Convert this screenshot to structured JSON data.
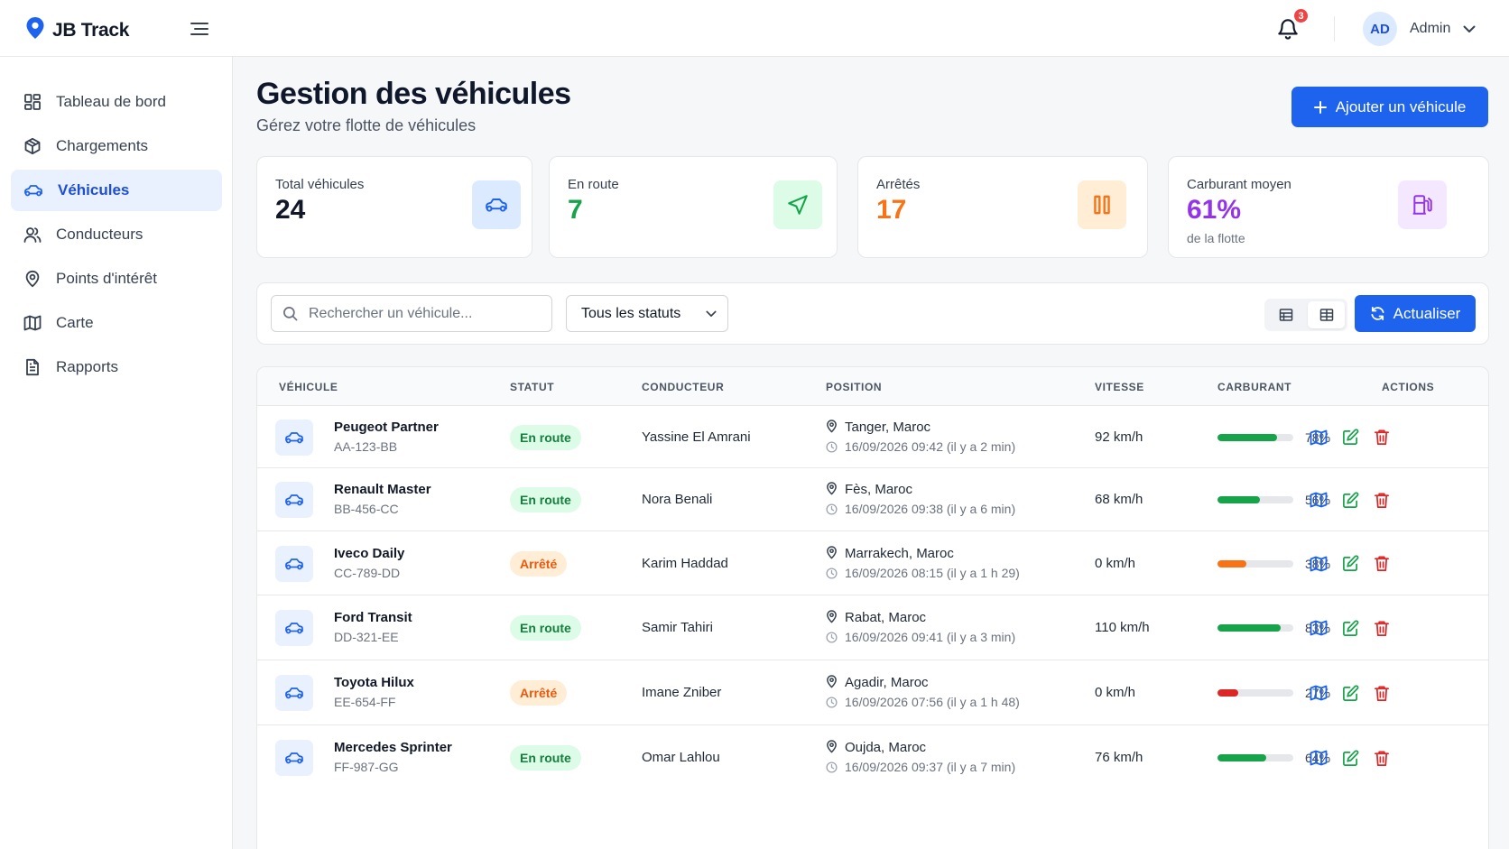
{
  "app": {
    "name": "JB Track"
  },
  "header": {
    "notifications_count": "3",
    "user_initials": "AD",
    "user_name": "Admin"
  },
  "sidebar": {
    "items": [
      {
        "label": "Tableau de bord",
        "icon": "grid-icon"
      },
      {
        "label": "Chargements",
        "icon": "box-icon"
      },
      {
        "label": "Véhicules",
        "icon": "car-icon",
        "active": true
      },
      {
        "label": "Conducteurs",
        "icon": "users-icon"
      },
      {
        "label": "Points d'intérêt",
        "icon": "map-pin-icon"
      },
      {
        "label": "Carte",
        "icon": "map-icon"
      },
      {
        "label": "Rapports",
        "icon": "file-text-icon"
      }
    ]
  },
  "page": {
    "title": "Gestion des véhicules",
    "subtitle": "Gérez votre flotte de véhicules",
    "add_button": "Ajouter un véhicule"
  },
  "stats": [
    {
      "label": "Total véhicules",
      "value": "24",
      "color": "#111827",
      "icon": "car-icon"
    },
    {
      "label": "En route",
      "value": "7",
      "color": "#16a34a",
      "icon": "navigation-icon"
    },
    {
      "label": "Arrêtés",
      "value": "17",
      "color": "#f97316",
      "icon": "pause-icon"
    },
    {
      "label": "Carburant moyen",
      "value": "61%",
      "footnote": "de la flotte",
      "color": "#9333ea",
      "icon": "fuel-icon"
    }
  ],
  "filters": {
    "search_placeholder": "Rechercher un véhicule...",
    "status_selected": "Tous les statuts",
    "refresh_label": "Actualiser"
  },
  "table": {
    "columns": [
      "VÉHICULE",
      "STATUT",
      "CONDUCTEUR",
      "POSITION",
      "VITESSE",
      "CARBURANT",
      "ACTIONS"
    ],
    "rows": [
      {
        "name": "Peugeot Partner",
        "plate": "AA-123-BB",
        "status": "En route",
        "status_type": "run",
        "driver": "Yassine El Amrani",
        "city": "Tanger, Maroc",
        "time": "16/09/2026 09:42 (il y a 2 min)",
        "speed": "92 km/h",
        "fuel": 78,
        "fuel_label": "78%",
        "fuel_color": "#16a34a"
      },
      {
        "name": "Renault Master",
        "plate": "BB-456-CC",
        "status": "En route",
        "status_type": "run",
        "driver": "Nora Benali",
        "city": "Fès, Maroc",
        "time": "16/09/2026 09:38 (il y a 6 min)",
        "speed": "68 km/h",
        "fuel": 56,
        "fuel_label": "56%",
        "fuel_color": "#16a34a"
      },
      {
        "name": "Iveco Daily",
        "plate": "CC-789-DD",
        "status": "Arrêté",
        "status_type": "stop",
        "driver": "Karim Haddad",
        "city": "Marrakech, Maroc",
        "time": "16/09/2026 08:15 (il y a 1 h 29)",
        "speed": "0 km/h",
        "fuel": 38,
        "fuel_label": "38%",
        "fuel_color": "#f97316"
      },
      {
        "name": "Ford Transit",
        "plate": "DD-321-EE",
        "status": "En route",
        "status_type": "run",
        "driver": "Samir Tahiri",
        "city": "Rabat, Maroc",
        "time": "16/09/2026 09:41 (il y a 3 min)",
        "speed": "110 km/h",
        "fuel": 83,
        "fuel_label": "83%",
        "fuel_color": "#16a34a"
      },
      {
        "name": "Toyota Hilux",
        "plate": "EE-654-FF",
        "status": "Arrêté",
        "status_type": "stop",
        "driver": "Imane Zniber",
        "city": "Agadir, Maroc",
        "time": "16/09/2026 07:56 (il y a 1 h 48)",
        "speed": "0 km/h",
        "fuel": 27,
        "fuel_label": "27%",
        "fuel_color": "#dc2626"
      },
      {
        "name": "Mercedes Sprinter",
        "plate": "FF-987-GG",
        "status": "En route",
        "status_type": "run",
        "driver": "Omar Lahlou",
        "city": "Oujda, Maroc",
        "time": "16/09/2026 09:37 (il y a 7 min)",
        "speed": "76 km/h",
        "fuel": 64,
        "fuel_label": "64%",
        "fuel_color": "#16a34a"
      }
    ]
  },
  "colors": {
    "primary": "#1d63ed",
    "success": "#16a34a",
    "warning": "#f97316",
    "danger": "#dc2626"
  }
}
